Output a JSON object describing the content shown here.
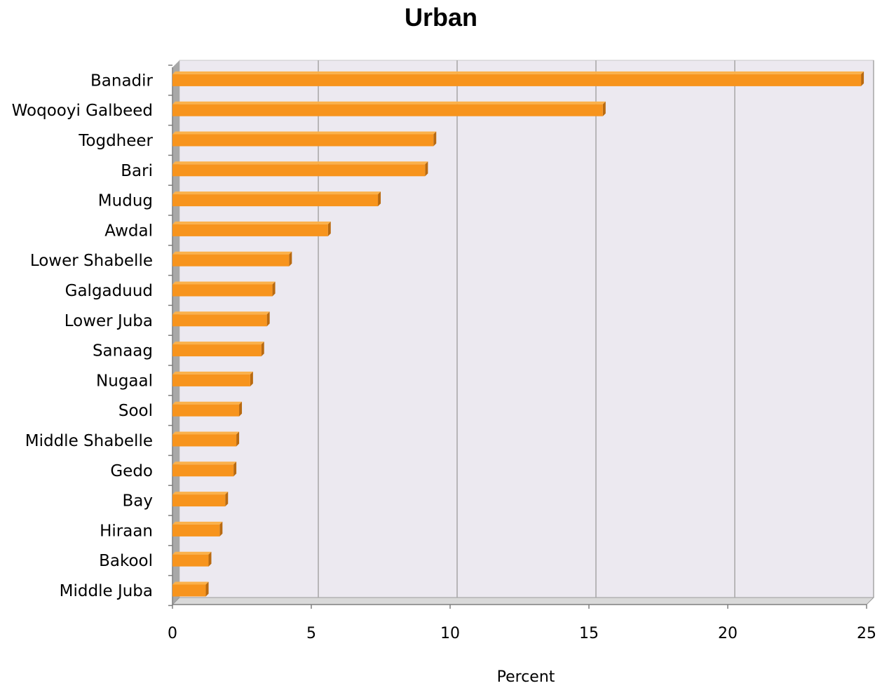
{
  "chart_data": {
    "type": "bar",
    "orientation": "horizontal",
    "title": "Urban",
    "xlabel": "Percent",
    "ylabel": "",
    "xlim": [
      0,
      25
    ],
    "xticks": [
      0,
      5,
      10,
      15,
      20,
      25
    ],
    "grid": "vertical",
    "categories": [
      "Banadir",
      "Woqooyi Galbeed",
      "Togdheer",
      "Bari",
      "Mudug",
      "Awdal",
      "Lower Shabelle",
      "Galgaduud",
      "Lower Juba",
      "Sanaag",
      "Nugaal",
      "Sool",
      "Middle Shabelle",
      "Gedo",
      "Bay",
      "Hiraan",
      "Bakool",
      "Middle Juba"
    ],
    "values": [
      24.8,
      15.5,
      9.4,
      9.1,
      7.4,
      5.6,
      4.2,
      3.6,
      3.4,
      3.2,
      2.8,
      2.4,
      2.3,
      2.2,
      1.9,
      1.7,
      1.3,
      1.2
    ],
    "colors": {
      "bar": "#f7941d",
      "bar_top": "#fbb14a",
      "bar_shadow": "#b96a10",
      "plot_background": "#ece9f0",
      "gridline": "#a6a6a6",
      "wall_side": "#a8a8a8"
    }
  }
}
